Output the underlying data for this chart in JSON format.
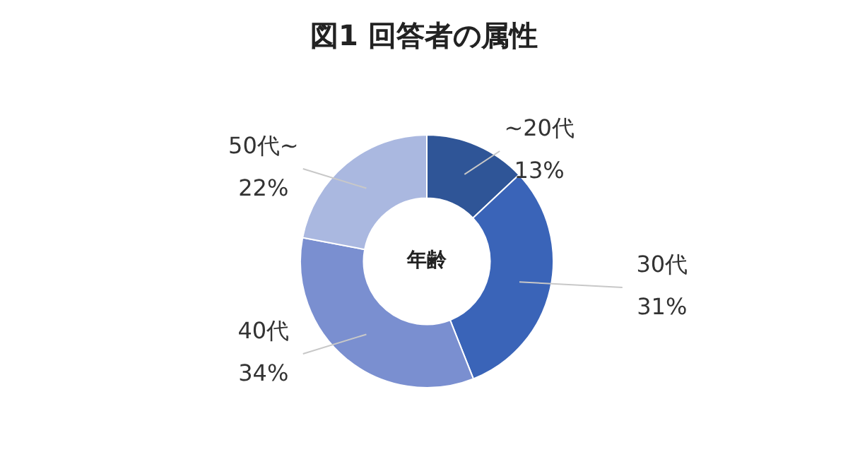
{
  "chart_data": {
    "type": "donut",
    "title": "図1 回答者の属性",
    "categories": [
      "~20代",
      "30代",
      "40代",
      "50代~"
    ],
    "values": [
      13,
      31,
      34,
      22
    ],
    "colors": [
      "#2f5597",
      "#3a64b8",
      "#7a8fd0",
      "#aab8e0"
    ],
    "value_labels": [
      "13%",
      "31%",
      "34%",
      "22%"
    ],
    "annotations": [
      "年齢"
    ],
    "legend": false
  }
}
